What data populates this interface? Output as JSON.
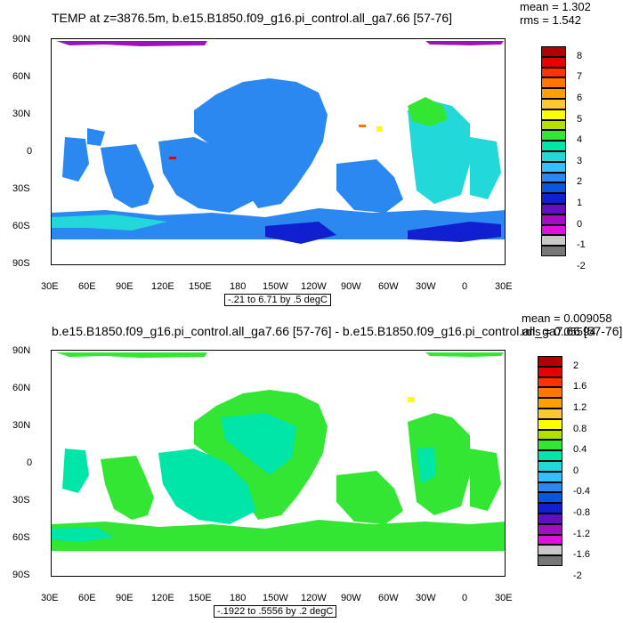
{
  "panels": [
    {
      "title": "TEMP at z=3876.5m, b.e15.B1850.f09_g16.pi_control.all_ga7.66 [57-76]",
      "mean": "mean = 1.302",
      "rms": "rms = 1.542",
      "range_text": "-.21 to 6.71 by .5 degC",
      "colorbar": {
        "labels": [
          "8",
          "7",
          "6",
          "5",
          "4",
          "3",
          "2",
          "1",
          "0",
          "-1",
          "-2"
        ],
        "colors": [
          "#b30000",
          "#e60000",
          "#ff3300",
          "#ff7700",
          "#ffa000",
          "#ffc830",
          "#ffff00",
          "#b4e000",
          "#33e633",
          "#00e6a8",
          "#22d8d8",
          "#33c0ff",
          "#2a88f0",
          "#0a55dd",
          "#1020d0",
          "#6010c0",
          "#a010c0",
          "#e010e0",
          "#c8c8c8",
          "#777777"
        ]
      }
    },
    {
      "title": "b.e15.B1850.f09_g16.pi_control.all_ga7.66 [57-76] - b.e15.B1850.f09_g16.pi_control.all_ga7.66 [57-76]",
      "mean": "mean = 0.009058",
      "rms": "rms = 0.05594",
      "range_text": "-.1922 to .5556 by .2 degC",
      "colorbar": {
        "labels": [
          "2",
          "1.6",
          "1.2",
          "0.8",
          "0.4",
          "0",
          "-0.4",
          "-0.8",
          "-1.2",
          "-1.6",
          "-2"
        ],
        "colors": [
          "#b30000",
          "#e60000",
          "#ff3300",
          "#ff7700",
          "#ffa000",
          "#ffc830",
          "#ffff00",
          "#b4e000",
          "#33e633",
          "#00e6a8",
          "#22d8d8",
          "#33c0ff",
          "#2a88f0",
          "#0a55dd",
          "#1020d0",
          "#6010c0",
          "#a010c0",
          "#e010e0",
          "#c8c8c8",
          "#777777"
        ]
      }
    }
  ],
  "x_ticks": [
    "30E",
    "60E",
    "90E",
    "120E",
    "150E",
    "180",
    "150W",
    "120W",
    "90W",
    "60W",
    "30W",
    "0",
    "30E"
  ],
  "y_ticks": [
    "90N",
    "60N",
    "30N",
    "0",
    "30S",
    "60S",
    "90S"
  ],
  "colors": {
    "panel1_main": "#2a88f0",
    "panel1_light": "#22d8d8",
    "panel1_dark": "#1020d0",
    "panel1_purple": "#a010c0",
    "panel2_main": "#33e633",
    "panel2_light": "#00e6a8"
  }
}
